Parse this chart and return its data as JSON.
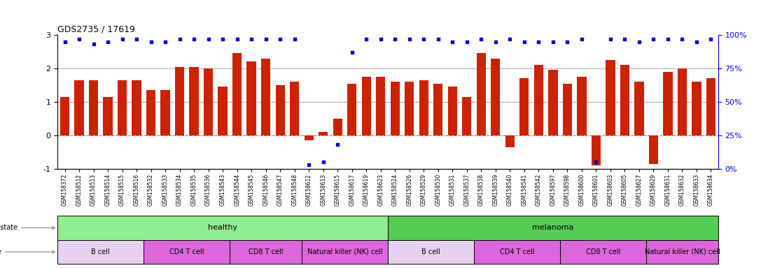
{
  "title": "GDS2735 / 17619",
  "samples": [
    "GSM158372",
    "GSM158512",
    "GSM158513",
    "GSM158514",
    "GSM158515",
    "GSM158516",
    "GSM158532",
    "GSM158533",
    "GSM158534",
    "GSM158535",
    "GSM158536",
    "GSM158543",
    "GSM158544",
    "GSM158545",
    "GSM158546",
    "GSM158547",
    "GSM158548",
    "GSM158612",
    "GSM158613",
    "GSM158615",
    "GSM158617",
    "GSM158619",
    "GSM158623",
    "GSM158524",
    "GSM158526",
    "GSM158529",
    "GSM158530",
    "GSM158531",
    "GSM158537",
    "GSM158538",
    "GSM158539",
    "GSM158540",
    "GSM158541",
    "GSM158542",
    "GSM158597",
    "GSM158598",
    "GSM158600",
    "GSM158601",
    "GSM158603",
    "GSM158605",
    "GSM158627",
    "GSM158629",
    "GSM158631",
    "GSM158632",
    "GSM158633",
    "GSM158634"
  ],
  "log2_ratio": [
    1.15,
    1.65,
    1.65,
    1.15,
    1.65,
    1.65,
    1.35,
    1.35,
    2.05,
    2.05,
    2.0,
    1.45,
    2.45,
    2.2,
    2.3,
    1.5,
    1.6,
    -0.15,
    0.1,
    0.5,
    1.55,
    1.75,
    1.75,
    1.6,
    1.6,
    1.65,
    1.55,
    1.45,
    1.15,
    2.45,
    2.3,
    -0.35,
    1.7,
    2.1,
    1.95,
    1.55,
    1.75,
    -0.9,
    2.25,
    2.1,
    1.6,
    -0.85,
    1.9,
    2.0,
    1.6,
    1.7
  ],
  "percentile_right": [
    95,
    97,
    93,
    95,
    97,
    97,
    95,
    95,
    97,
    97,
    97,
    97,
    97,
    97,
    97,
    97,
    97,
    3,
    5,
    18,
    87,
    97,
    97,
    97,
    97,
    97,
    97,
    95,
    95,
    97,
    95,
    97,
    95,
    95,
    95,
    95,
    97,
    5,
    97,
    97,
    95,
    97,
    97,
    97,
    95,
    97
  ],
  "disease_state_groups": [
    {
      "label": "healthy",
      "start": 0,
      "end": 23,
      "color": "#90ee90"
    },
    {
      "label": "melanoma",
      "start": 23,
      "end": 46,
      "color": "#55cc55"
    }
  ],
  "cell_type_groups": [
    {
      "label": "B cell",
      "start": 0,
      "end": 6,
      "color": "#e8d0f0"
    },
    {
      "label": "CD4 T cell",
      "start": 6,
      "end": 12,
      "color": "#dd66dd"
    },
    {
      "label": "CD8 T cell",
      "start": 12,
      "end": 17,
      "color": "#dd66dd"
    },
    {
      "label": "Natural killer (NK) cell",
      "start": 17,
      "end": 23,
      "color": "#dd66dd"
    },
    {
      "label": "B cell",
      "start": 23,
      "end": 29,
      "color": "#e8d0f0"
    },
    {
      "label": "CD4 T cell",
      "start": 29,
      "end": 35,
      "color": "#dd66dd"
    },
    {
      "label": "CD8 T cell",
      "start": 35,
      "end": 41,
      "color": "#dd66dd"
    },
    {
      "label": "Natural killer (NK) cell",
      "start": 41,
      "end": 46,
      "color": "#dd66dd"
    }
  ],
  "bar_color": "#cc2200",
  "dot_color": "#0000cc",
  "ytick_bg": "#e8e8e8",
  "ylim_left": [
    -1,
    3
  ],
  "ylim_right": [
    0,
    100
  ],
  "yticks_left": [
    -1,
    0,
    1,
    2,
    3
  ],
  "yticks_right": [
    0,
    25,
    50,
    75,
    100
  ],
  "yticklabels_right": [
    "0%",
    "25%",
    "50%",
    "75%",
    "100%"
  ],
  "dotted_lines": [
    1.0,
    2.0
  ],
  "zero_line_color": "#cc2200",
  "bar_width": 0.65
}
